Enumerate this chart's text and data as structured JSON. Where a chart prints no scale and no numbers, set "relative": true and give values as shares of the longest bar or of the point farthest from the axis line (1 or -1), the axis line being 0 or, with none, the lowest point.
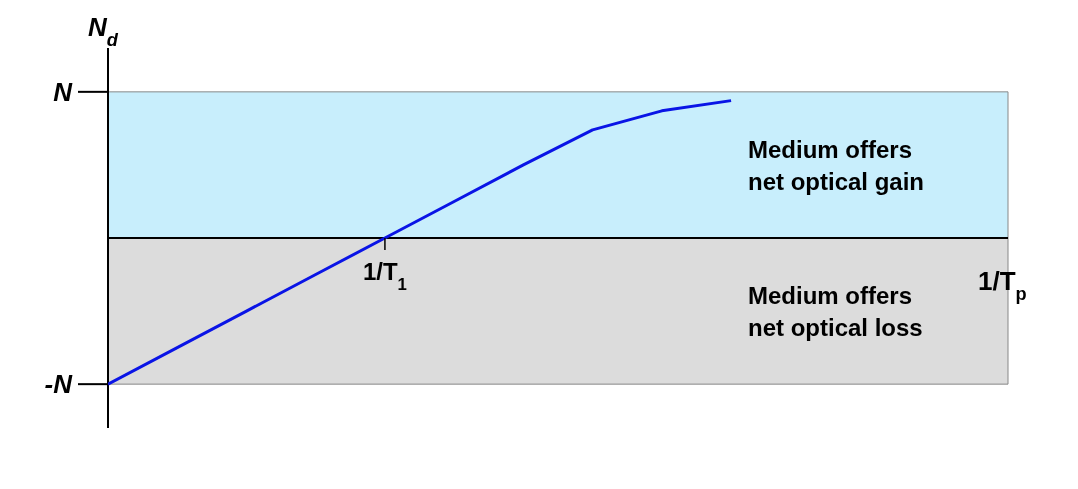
{
  "chart_data": {
    "type": "line",
    "relative": true,
    "xlabel": "1/T$_{p}$",
    "ylabel": "N$_{d}$",
    "categories": [
      null,
      null,
      null,
      null,
      null,
      null,
      null,
      null,
      null,
      null,
      null,
      null,
      null,
      null
    ],
    "series": [
      {
        "color": "#0a14e6",
        "values": [
          -1,
          -0.75,
          -0.5,
          -0.25,
          0,
          0.25,
          0.5,
          0.74,
          0.87,
          0.94,
          null,
          null,
          null,
          null
        ]
      }
    ],
    "annotations": [
      "N",
      "-N",
      "1/T$_{1}$"
    ],
    "bands": [
      {
        "axis": "y",
        "from": 0,
        "to": 1,
        "label": "Medium offers\nnet optical gain",
        "color": "#c8eefc"
      },
      {
        "axis": "y",
        "from": -1,
        "to": 0,
        "label": "Medium offers\nnet optical loss",
        "color": "#dcdcdc"
      }
    ]
  }
}
